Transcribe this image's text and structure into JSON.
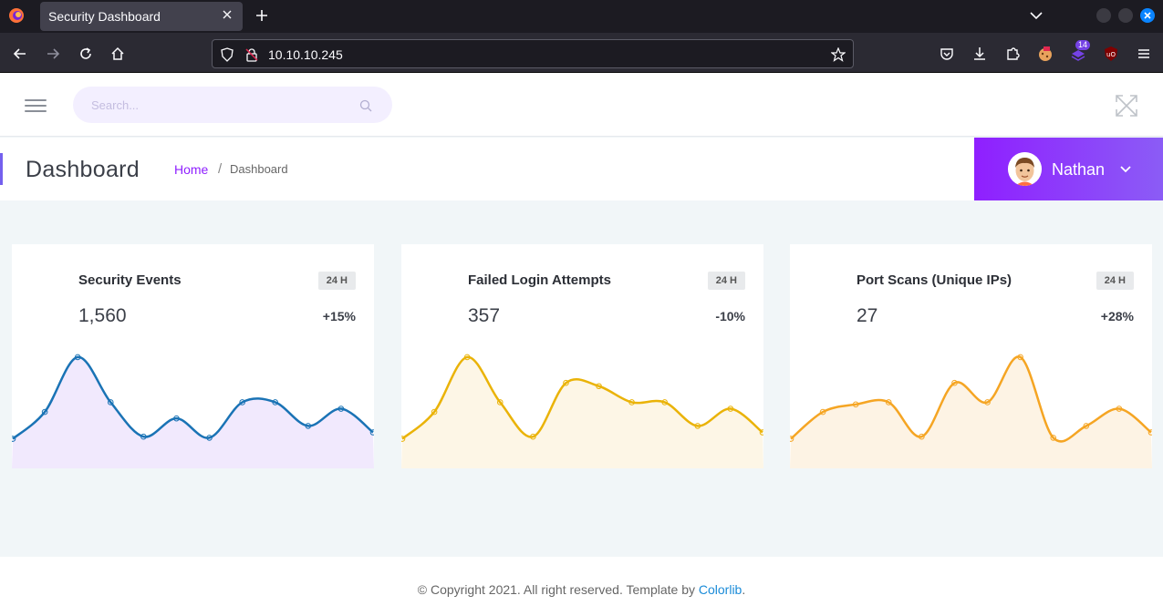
{
  "browser": {
    "tab_title": "Security Dashboard",
    "url": "10.10.10.245",
    "extension_badge": "14"
  },
  "search": {
    "placeholder": "Search..."
  },
  "page": {
    "title": "Dashboard",
    "breadcrumb": {
      "home": "Home",
      "separator": "/",
      "current": "Dashboard"
    }
  },
  "user": {
    "name": "Nathan"
  },
  "cards": [
    {
      "title": "Security Events",
      "period": "24 H",
      "value": "1,560",
      "change": "+15%",
      "color": "#1a73b5",
      "fill": "#f1e9fd",
      "points": [
        0.19,
        0.44,
        0.95,
        0.53,
        0.21,
        0.38,
        0.2,
        0.53,
        0.53,
        0.31,
        0.47,
        0.25
      ]
    },
    {
      "title": "Failed Login Attempts",
      "period": "24 H",
      "value": "357",
      "change": "-10%",
      "color": "#eab308",
      "fill": "#fdf6e6",
      "points": [
        0.19,
        0.44,
        0.95,
        0.53,
        0.21,
        0.71,
        0.68,
        0.53,
        0.53,
        0.31,
        0.47,
        0.25
      ]
    },
    {
      "title": "Port Scans (Unique IPs)",
      "period": "24 H",
      "value": "27",
      "change": "+28%",
      "color": "#f5a523",
      "fill": "#fdf3e4",
      "points": [
        0.19,
        0.44,
        0.51,
        0.53,
        0.21,
        0.71,
        0.53,
        0.95,
        0.2,
        0.31,
        0.47,
        0.25
      ]
    }
  ],
  "footer": {
    "text": "© Copyright 2021. All right reserved. Template by ",
    "link": "Colorlib",
    "suffix": "."
  }
}
